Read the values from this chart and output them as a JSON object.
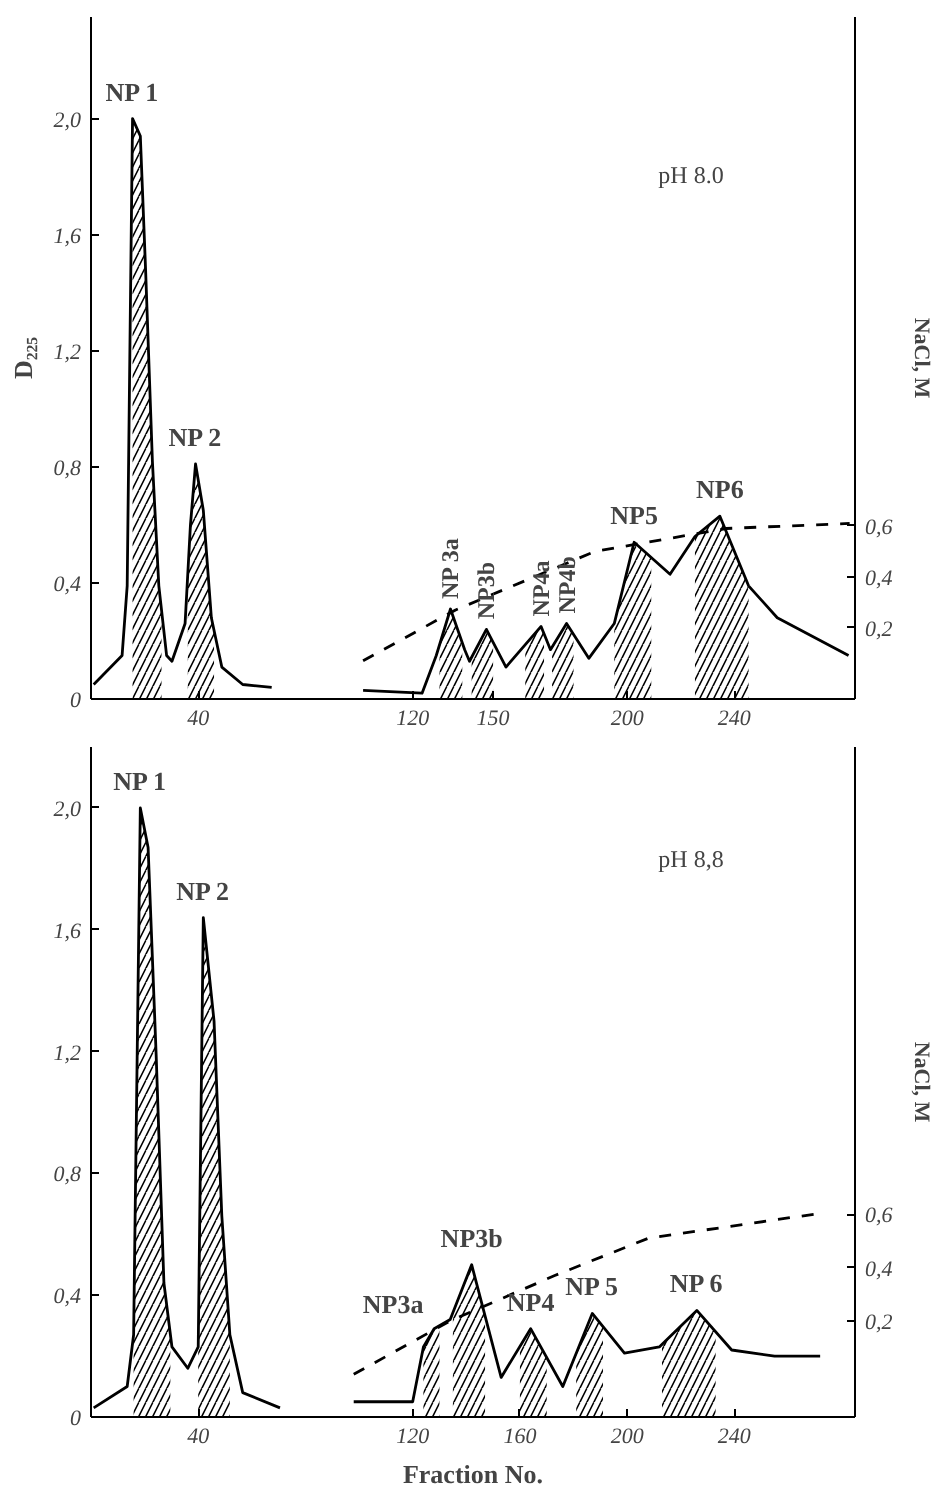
{
  "chart_data": [
    {
      "type": "line",
      "ylabel": "D₂₂₅",
      "y2label": "NaCl, M",
      "xlim": [
        0,
        285
      ],
      "ylim": [
        0,
        2.35
      ],
      "y2lim": [
        -0.08,
        2.6
      ],
      "xticks": [
        40,
        120,
        150,
        200,
        240
      ],
      "yticks": [
        0,
        {
          "value": 0.4,
          "label": "0,4"
        },
        {
          "value": 0.8,
          "label": "0,8"
        },
        {
          "value": 1.2,
          "label": "1,2"
        },
        {
          "value": 1.6,
          "label": "1,6"
        },
        {
          "value": 2.0,
          "label": "2,0"
        }
      ],
      "y2ticks": [
        {
          "value": 0.2,
          "label": "0,2"
        },
        {
          "value": 0.4,
          "label": "0,4"
        },
        {
          "value": 0.6,
          "label": "0,6"
        }
      ],
      "series": [
        {
          "color": "#000000",
          "x": [
            1,
            11.6,
            13.5,
            15.5,
            18.4,
            20.4,
            22.9,
            25.3,
            28.2,
            30.2,
            35.1,
            37.1,
            39.0,
            41.9,
            44.9,
            48.8,
            56.6,
            67.4,
            85,
            101.5,
            123.5,
            128.8,
            134.1,
            139.4,
            141.2,
            147.5,
            154.8,
            167.9,
            171.4,
            177.4,
            185.7,
            195.2,
            202.6,
            216,
            225.3,
            234.6,
            245.3,
            256,
            282.6
          ],
          "values": [
            0.05,
            0.15,
            0.39,
            2.0,
            1.94,
            1.47,
            0.82,
            0.39,
            0.15,
            0.13,
            0.26,
            0.6,
            0.81,
            0.65,
            0.28,
            0.11,
            0.05,
            0.04,
            null,
            0.03,
            0.02,
            0.15,
            0.31,
            0.17,
            0.13,
            0.24,
            0.11,
            0.25,
            0.17,
            0.26,
            0.14,
            0.26,
            0.54,
            0.43,
            0.56,
            0.63,
            0.39,
            0.28,
            0.15
          ]
        },
        {
          "color": "#000000",
          "axis": "y2",
          "line_style": "dashed",
          "x": [
            101.5,
            136,
            188,
            237,
            283
          ],
          "values": [
            0.07,
            0.27,
            0.5,
            0.59,
            0.61
          ]
        },
        {
          "type": "area",
          "color": "#000000",
          "x": [
            15.5,
            18.4,
            20.4,
            22.9,
            25.3,
            26.3
          ],
          "values": [
            2.0,
            1.94,
            1.47,
            0.82,
            0.39,
            0.31
          ]
        },
        {
          "type": "area",
          "color": "#000000",
          "x": [
            36.1,
            37.1,
            39.0,
            41.9,
            44.9,
            45.9
          ],
          "values": [
            0.43,
            0.6,
            0.81,
            0.65,
            0.28,
            0.24
          ]
        },
        {
          "type": "area",
          "color": "#000000",
          "x": [
            130,
            134.1,
            138.5
          ],
          "values": [
            0.19,
            0.31,
            0.19
          ]
        },
        {
          "type": "area",
          "color": "#000000",
          "x": [
            142,
            147.5,
            150
          ],
          "values": [
            0.14,
            0.24,
            0.2
          ]
        },
        {
          "type": "area",
          "color": "#000000",
          "x": [
            162,
            167.9,
            169
          ],
          "values": [
            0.19,
            0.25,
            0.22
          ]
        },
        {
          "type": "area",
          "color": "#000000",
          "x": [
            172,
            177.4,
            180
          ],
          "values": [
            0.18,
            0.26,
            0.22
          ]
        },
        {
          "type": "area",
          "color": "#000000",
          "x": [
            195.2,
            202.6,
            209
          ],
          "values": [
            0.26,
            0.54,
            0.49
          ]
        },
        {
          "type": "area",
          "color": "#000000",
          "x": [
            225.3,
            234.6,
            245.3
          ],
          "values": [
            0.56,
            0.63,
            0.39
          ]
        }
      ],
      "annotations": [
        {
          "text": "NP 1",
          "x": 15.5,
          "y": 2.0
        },
        {
          "text": "NP 2",
          "x": 39.0,
          "y": 0.81
        },
        {
          "text": "NP 3a",
          "x": 134.1,
          "y": 0.31
        },
        {
          "text": "NP3b",
          "x": 147.5,
          "y": 0.24
        },
        {
          "text": "NP4a",
          "x": 167.9,
          "y": 0.25
        },
        {
          "text": "NP4b",
          "x": 177.4,
          "y": 0.26
        },
        {
          "text": "NP5",
          "x": 202.6,
          "y": 0.54
        },
        {
          "text": "NP6",
          "x": 234.6,
          "y": 0.63
        },
        "pH 8.0"
      ]
    },
    {
      "type": "line",
      "xlabel": "Fraction No.",
      "y2label": "NaCl, M",
      "xlim": [
        0,
        285
      ],
      "ylim": [
        0,
        2.2
      ],
      "y2lim": [
        -0.16,
        2.35
      ],
      "xticks": [
        40,
        120,
        160,
        200,
        240
      ],
      "yticks": [
        0,
        {
          "value": 0.4,
          "label": "0,4"
        },
        {
          "value": 0.8,
          "label": "0,8"
        },
        {
          "value": 1.2,
          "label": "1,2"
        },
        {
          "value": 1.6,
          "label": "1,6"
        },
        {
          "value": 2.0,
          "label": "2,0"
        }
      ],
      "y2ticks": [
        {
          "value": 0.2,
          "label": "0,2"
        },
        {
          "value": 0.4,
          "label": "0,4"
        },
        {
          "value": 0.6,
          "label": "0,6"
        }
      ],
      "series": [
        {
          "color": "#000000",
          "x": [
            1,
            13.5,
            15.9,
            18.4,
            21.3,
            24.3,
            27.2,
            30.2,
            36.1,
            40,
            41.9,
            45.9,
            48.8,
            51.8,
            56.6,
            70.5,
            85,
            98,
            120,
            124,
            128,
            134,
            142,
            153,
            164,
            176,
            187,
            199,
            212,
            226,
            239,
            255,
            272
          ],
          "values": [
            0.03,
            0.1,
            0.27,
            2.0,
            1.87,
            1.19,
            0.44,
            0.23,
            0.16,
            0.23,
            1.64,
            1.3,
            0.66,
            0.27,
            0.08,
            0.03,
            null,
            0.05,
            0.05,
            0.23,
            0.29,
            0.32,
            0.5,
            0.13,
            0.29,
            0.1,
            0.34,
            0.21,
            0.23,
            0.35,
            0.22,
            0.2,
            0.2
          ]
        },
        {
          "color": "#000000",
          "axis": "y2",
          "line_style": "dashed",
          "x": [
            98,
            134,
            173,
            208,
            270
          ],
          "values": [
            0.0,
            0.2,
            0.37,
            0.51,
            0.6
          ]
        },
        {
          "type": "area",
          "color": "#000000",
          "x": [
            15.9,
            18.4,
            21.3,
            24.3,
            27.2,
            29.6
          ],
          "values": [
            0.27,
            2.0,
            1.87,
            1.19,
            0.44,
            0.27
          ]
        },
        {
          "type": "area",
          "color": "#000000",
          "x": [
            40,
            41.9,
            45.9,
            48.8,
            51.8
          ],
          "values": [
            0.23,
            1.64,
            1.3,
            0.66,
            0.27
          ]
        },
        {
          "type": "area",
          "color": "#000000",
          "x": [
            124,
            128,
            130
          ],
          "values": [
            0.23,
            0.29,
            0.3
          ]
        },
        {
          "type": "area",
          "color": "#000000",
          "x": [
            135,
            142,
            147
          ],
          "values": [
            0.34,
            0.5,
            0.33
          ]
        },
        {
          "type": "area",
          "color": "#000000",
          "x": [
            160,
            164,
            170
          ],
          "values": [
            0.23,
            0.29,
            0.2
          ]
        },
        {
          "type": "area",
          "color": "#000000",
          "x": [
            181,
            187,
            191
          ],
          "values": [
            0.21,
            0.34,
            0.3
          ]
        },
        {
          "type": "area",
          "color": "#000000",
          "x": [
            213,
            226,
            233
          ],
          "values": [
            0.24,
            0.35,
            0.28
          ]
        }
      ],
      "annotations": [
        {
          "text": "NP 1",
          "x": 18.4,
          "y": 2.0
        },
        {
          "text": "NP 2",
          "x": 41.9,
          "y": 1.64
        },
        {
          "text": "NP3a",
          "x": 124,
          "y": 0.23
        },
        {
          "text": "NP3b",
          "x": 142,
          "y": 0.5
        },
        {
          "text": "NP4",
          "x": 164,
          "y": 0.29
        },
        {
          "text": "NP 5",
          "x": 187,
          "y": 0.34
        },
        {
          "text": "NP 6",
          "x": 226,
          "y": 0.35
        },
        "pH 8,8"
      ]
    }
  ]
}
